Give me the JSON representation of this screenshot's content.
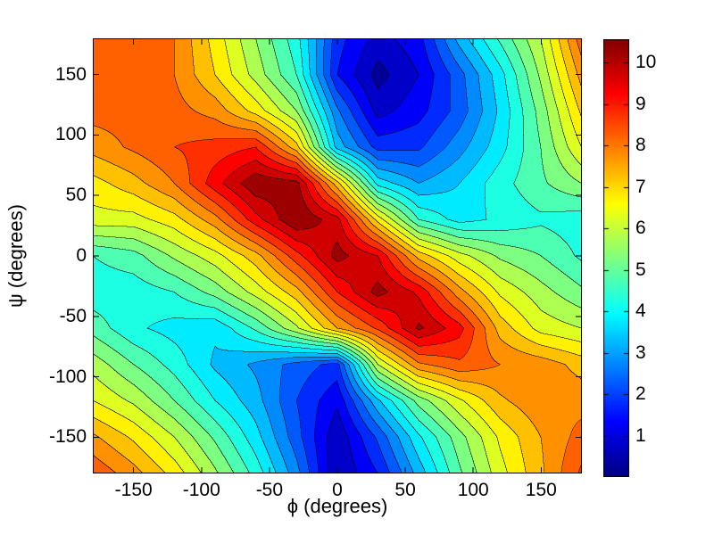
{
  "figure": {
    "background": "#ffffff",
    "border_color": "#000000"
  },
  "axes": {
    "xlabel": "ϕ (degrees)",
    "ylabel": "ψ (degrees)",
    "xticks": [
      -150,
      -100,
      -50,
      0,
      50,
      100,
      150
    ],
    "yticks": [
      150,
      100,
      50,
      0,
      -50,
      -100,
      -150
    ],
    "xlim": [
      -180,
      180
    ],
    "ylim": [
      -180,
      180
    ],
    "tick_direction": "in",
    "box": true
  },
  "colorbar": {
    "ticks": [
      1,
      2,
      3,
      4,
      5,
      6,
      7,
      8,
      9,
      10
    ],
    "min": 0,
    "max": 10.56,
    "colormap": "jet",
    "orientation": "vertical"
  },
  "chart_data": {
    "type": "contour_filled",
    "title": "",
    "xlabel": "ϕ (degrees)",
    "ylabel": "ψ (degrees)",
    "colormap": "jet",
    "color_range": [
      0,
      10.56
    ],
    "level_min": 0.5,
    "level_step": 0.5,
    "level_max": 10.5,
    "grid_note": "z rows run from psi=180 (top) down to psi=-180 (bottom); columns run phi=-180..180",
    "x": [
      -180,
      -150,
      -120,
      -90,
      -60,
      -30,
      0,
      30,
      60,
      90,
      120,
      150,
      180
    ],
    "y": [
      180,
      150,
      120,
      90,
      60,
      30,
      0,
      -30,
      -60,
      -90,
      -120,
      -150,
      -180
    ],
    "z": [
      [
        8.5,
        8.5,
        8.0,
        6.8,
        5.5,
        4.2,
        1.7,
        0.8,
        1.3,
        3.2,
        4.6,
        6.0,
        8.3
      ],
      [
        8.4,
        8.3,
        8.0,
        7.0,
        5.8,
        4.5,
        1.5,
        0.3,
        1.0,
        2.3,
        3.8,
        5.6,
        7.7
      ],
      [
        8.2,
        8.2,
        8.2,
        7.8,
        6.8,
        5.5,
        2.6,
        0.8,
        1.3,
        2.2,
        3.6,
        5.2,
        7.1
      ],
      [
        7.7,
        8.1,
        8.5,
        8.7,
        9.0,
        7.2,
        3.3,
        1.8,
        1.9,
        2.8,
        3.8,
        5.0,
        6.5
      ],
      [
        6.8,
        7.3,
        8.0,
        9.3,
        10.4,
        10.2,
        7.2,
        3.8,
        3.0,
        3.5,
        4.3,
        4.9,
        5.5
      ],
      [
        6.3,
        6.3,
        6.8,
        7.8,
        9.3,
        10.5,
        9.7,
        6.8,
        4.5,
        3.8,
        4.1,
        4.4,
        4.2
      ],
      [
        4.5,
        4.8,
        5.6,
        6.3,
        7.3,
        8.8,
        10.2,
        9.5,
        7.3,
        6.2,
        5.4,
        5.0,
        4.4
      ],
      [
        4.2,
        4.2,
        4.5,
        5.2,
        6.2,
        7.3,
        9.0,
        10.2,
        9.4,
        7.7,
        6.4,
        5.7,
        5.1
      ],
      [
        4.8,
        4.1,
        3.8,
        3.6,
        4.6,
        5.9,
        7.5,
        8.6,
        10.1,
        9.2,
        7.3,
        6.3,
        6.0
      ],
      [
        5.8,
        5.0,
        4.3,
        3.4,
        2.9,
        2.3,
        1.8,
        6.0,
        7.9,
        8.4,
        8.0,
        7.8,
        7.3
      ],
      [
        6.5,
        5.9,
        5.0,
        4.0,
        3.2,
        2.0,
        1.1,
        3.4,
        5.2,
        6.4,
        7.4,
        7.9,
        7.8
      ],
      [
        7.6,
        6.9,
        6.0,
        4.9,
        3.7,
        2.2,
        0.6,
        2.1,
        3.9,
        5.3,
        6.6,
        7.5,
        8.2
      ],
      [
        8.4,
        7.7,
        6.8,
        5.6,
        4.3,
        2.7,
        0.5,
        1.5,
        3.2,
        4.9,
        6.3,
        7.4,
        8.6
      ]
    ]
  }
}
